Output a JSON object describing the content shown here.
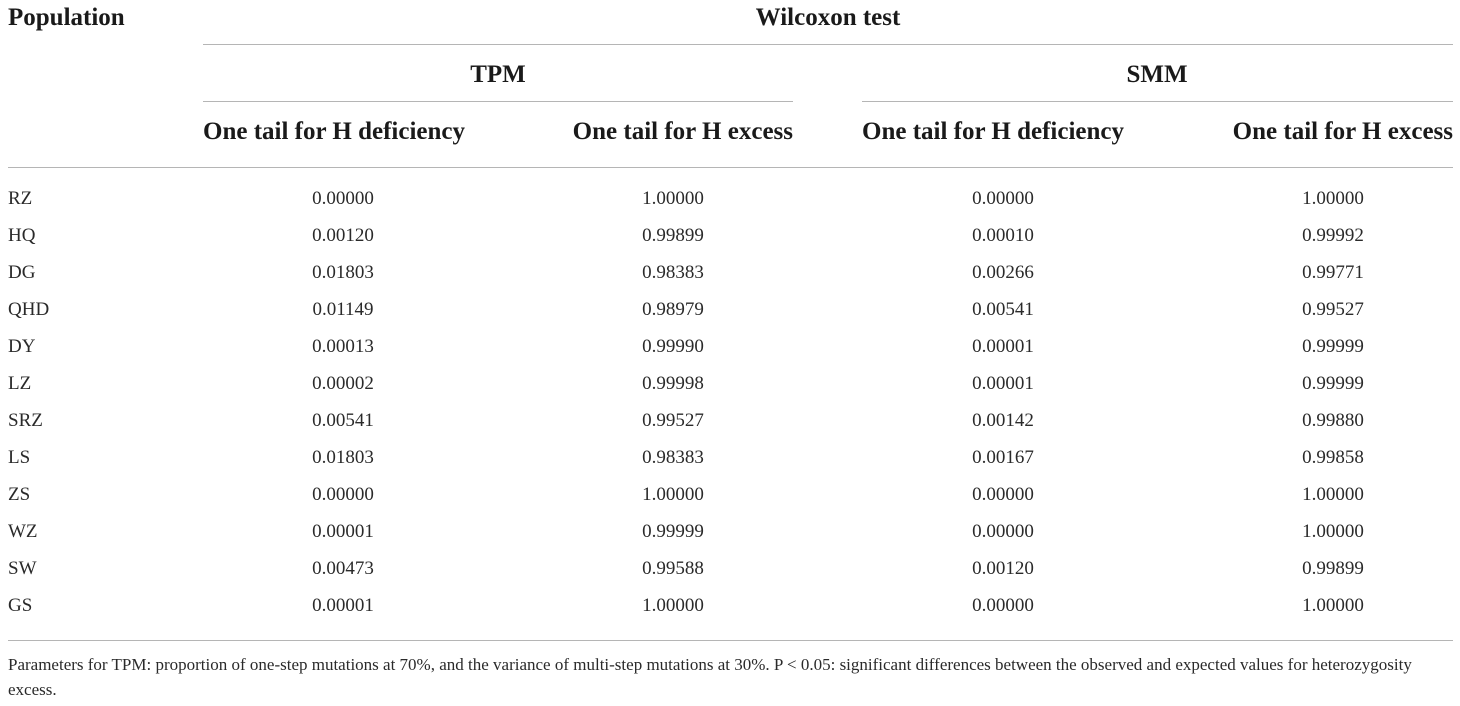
{
  "table": {
    "header": {
      "population": "Population",
      "test": "Wilcoxon test",
      "groups": [
        "TPM",
        "SMM"
      ],
      "columns": [
        "One tail for H deficiency",
        "One tail for H excess",
        "One tail for H deficiency",
        "One tail for H excess"
      ]
    },
    "rows": [
      {
        "pop": "RZ",
        "vals": [
          "0.00000",
          "1.00000",
          "0.00000",
          "1.00000"
        ]
      },
      {
        "pop": "HQ",
        "vals": [
          "0.00120",
          "0.99899",
          "0.00010",
          "0.99992"
        ]
      },
      {
        "pop": "DG",
        "vals": [
          "0.01803",
          "0.98383",
          "0.00266",
          "0.99771"
        ]
      },
      {
        "pop": "QHD",
        "vals": [
          "0.01149",
          "0.98979",
          "0.00541",
          "0.99527"
        ]
      },
      {
        "pop": "DY",
        "vals": [
          "0.00013",
          "0.99990",
          "0.00001",
          "0.99999"
        ]
      },
      {
        "pop": "LZ",
        "vals": [
          "0.00002",
          "0.99998",
          "0.00001",
          "0.99999"
        ]
      },
      {
        "pop": "SRZ",
        "vals": [
          "0.00541",
          "0.99527",
          "0.00142",
          "0.99880"
        ]
      },
      {
        "pop": "LS",
        "vals": [
          "0.01803",
          "0.98383",
          "0.00167",
          "0.99858"
        ]
      },
      {
        "pop": "ZS",
        "vals": [
          "0.00000",
          "1.00000",
          "0.00000",
          "1.00000"
        ]
      },
      {
        "pop": "WZ",
        "vals": [
          "0.00001",
          "0.99999",
          "0.00000",
          "1.00000"
        ]
      },
      {
        "pop": "SW",
        "vals": [
          "0.00473",
          "0.99588",
          "0.00120",
          "0.99899"
        ]
      },
      {
        "pop": "GS",
        "vals": [
          "0.00001",
          "1.00000",
          "0.00000",
          "1.00000"
        ]
      }
    ],
    "footnote": "Parameters for TPM: proportion of one-step mutations at 70%, and the variance of multi-step mutations at 30%. P < 0.05: significant differences between the observed and expected values for heterozygosity excess."
  }
}
